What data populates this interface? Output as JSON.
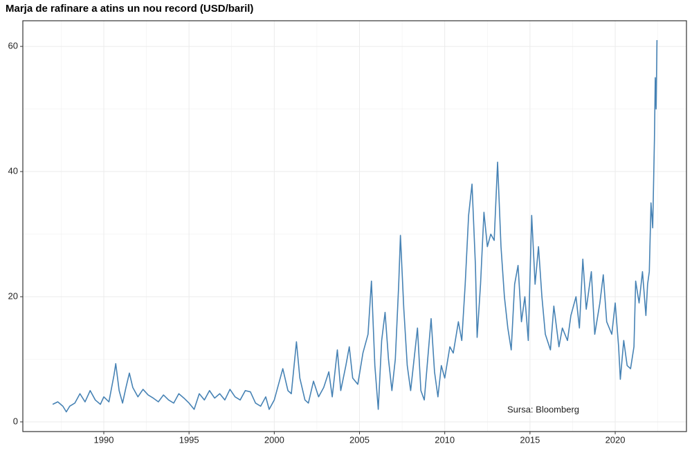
{
  "chart_data": {
    "type": "line",
    "title": "Marja de rafinare a atins un nou record (USD/baril)",
    "annotation": "Sursa: Bloomberg",
    "x": [
      1987.0,
      1987.3,
      1987.6,
      1987.8,
      1988.0,
      1988.3,
      1988.6,
      1988.9,
      1989.2,
      1989.5,
      1989.8,
      1990.0,
      1990.3,
      1990.6,
      1990.7,
      1990.9,
      1991.1,
      1991.3,
      1991.5,
      1991.7,
      1992.0,
      1992.3,
      1992.6,
      1992.9,
      1993.2,
      1993.5,
      1993.8,
      1994.1,
      1994.4,
      1994.7,
      1995.0,
      1995.3,
      1995.6,
      1995.9,
      1996.2,
      1996.5,
      1996.8,
      1997.1,
      1997.4,
      1997.7,
      1998.0,
      1998.3,
      1998.6,
      1998.9,
      1999.2,
      1999.5,
      1999.7,
      2000.0,
      2000.3,
      2000.5,
      2000.8,
      2001.0,
      2001.3,
      2001.5,
      2001.8,
      2002.0,
      2002.3,
      2002.6,
      2002.9,
      2003.2,
      2003.4,
      2003.7,
      2003.9,
      2004.2,
      2004.4,
      2004.6,
      2004.9,
      2005.2,
      2005.5,
      2005.7,
      2005.9,
      2006.1,
      2006.3,
      2006.5,
      2006.7,
      2006.9,
      2007.1,
      2007.3,
      2007.4,
      2007.6,
      2007.8,
      2008.0,
      2008.2,
      2008.4,
      2008.6,
      2008.8,
      2009.0,
      2009.2,
      2009.4,
      2009.6,
      2009.8,
      2010.0,
      2010.3,
      2010.5,
      2010.8,
      2011.0,
      2011.2,
      2011.4,
      2011.6,
      2011.8,
      2011.9,
      2012.1,
      2012.3,
      2012.5,
      2012.7,
      2012.9,
      2013.1,
      2013.3,
      2013.5,
      2013.7,
      2013.9,
      2014.1,
      2014.3,
      2014.5,
      2014.7,
      2014.9,
      2015.1,
      2015.3,
      2015.5,
      2015.7,
      2015.9,
      2016.2,
      2016.4,
      2016.7,
      2016.9,
      2017.2,
      2017.4,
      2017.7,
      2017.9,
      2018.1,
      2018.3,
      2018.6,
      2018.8,
      2019.1,
      2019.3,
      2019.5,
      2019.8,
      2020.0,
      2020.2,
      2020.3,
      2020.5,
      2020.7,
      2020.9,
      2021.1,
      2021.2,
      2021.4,
      2021.6,
      2021.8,
      2021.9,
      2022.0,
      2022.1,
      2022.2,
      2022.3,
      2022.35,
      2022.4,
      2022.45
    ],
    "series": [
      {
        "color": "#4682b4",
        "values": [
          2.8,
          3.2,
          2.5,
          1.6,
          2.5,
          3.0,
          4.5,
          3.2,
          5.0,
          3.5,
          2.8,
          4.0,
          3.2,
          7.5,
          9.3,
          5.0,
          3.0,
          5.5,
          7.8,
          5.5,
          4.0,
          5.2,
          4.3,
          3.8,
          3.2,
          4.3,
          3.5,
          3.0,
          4.5,
          3.8,
          3.0,
          2.0,
          4.5,
          3.5,
          5.0,
          3.8,
          4.5,
          3.5,
          5.2,
          4.0,
          3.5,
          5.0,
          4.8,
          3.0,
          2.5,
          4.0,
          2.0,
          3.5,
          6.5,
          8.5,
          5.0,
          4.5,
          12.8,
          7.0,
          3.5,
          3.0,
          6.5,
          4.0,
          5.5,
          8.0,
          4.0,
          11.5,
          5.0,
          9.0,
          12.0,
          7.0,
          6.0,
          11.0,
          14.0,
          22.5,
          9.0,
          2.0,
          13.0,
          17.5,
          10.0,
          5.0,
          10.0,
          22.0,
          29.8,
          18.0,
          9.0,
          5.0,
          10.0,
          15.0,
          5.0,
          3.5,
          10.0,
          16.5,
          8.0,
          4.0,
          9.0,
          7.0,
          12.0,
          11.0,
          16.0,
          13.0,
          22.0,
          33.0,
          38.0,
          25.0,
          13.5,
          22.0,
          33.5,
          28.0,
          30.0,
          29.0,
          41.5,
          28.0,
          20.0,
          15.0,
          11.5,
          22.0,
          25.0,
          16.0,
          20.0,
          13.0,
          33.0,
          22.0,
          28.0,
          20.0,
          14.0,
          11.5,
          18.5,
          12.0,
          15.0,
          13.0,
          17.0,
          20.0,
          15.0,
          26.0,
          18.0,
          24.0,
          14.0,
          19.0,
          23.5,
          16.0,
          14.0,
          19.0,
          12.0,
          6.8,
          13.0,
          9.0,
          8.5,
          12.0,
          22.5,
          19.0,
          24.0,
          17.0,
          22.0,
          24.0,
          35.0,
          31.0,
          45.0,
          55.0,
          50.0,
          61.0
        ]
      }
    ],
    "xlim": [
      1985.25,
      2024.18
    ],
    "xticks": [
      1990,
      1995,
      2000,
      2005,
      2010,
      2015,
      2020
    ],
    "ylim": [
      -1.55,
      64.1
    ],
    "yticks": [
      0,
      20,
      40,
      60
    ],
    "minor_xticks": [
      1987.5,
      1992.5,
      1997.5,
      2002.5,
      2007.5,
      2012.5,
      2017.5,
      2022.5
    ],
    "minor_yticks": [
      10,
      30,
      50
    ],
    "grid": true
  }
}
